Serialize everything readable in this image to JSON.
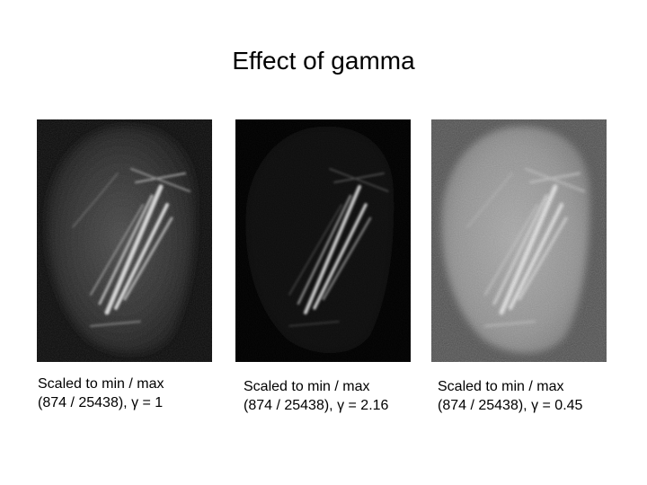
{
  "title": "Effect of gamma",
  "panels": [
    {
      "line1": "Scaled to min / max",
      "line2": "(874 / 25438), γ = 1"
    },
    {
      "line1": "Scaled to min / max",
      "line2": "(874 / 25438), γ = 2.16"
    },
    {
      "line1": "Scaled to min / max",
      "line2": "(874 / 25438), γ = 0.45"
    }
  ]
}
